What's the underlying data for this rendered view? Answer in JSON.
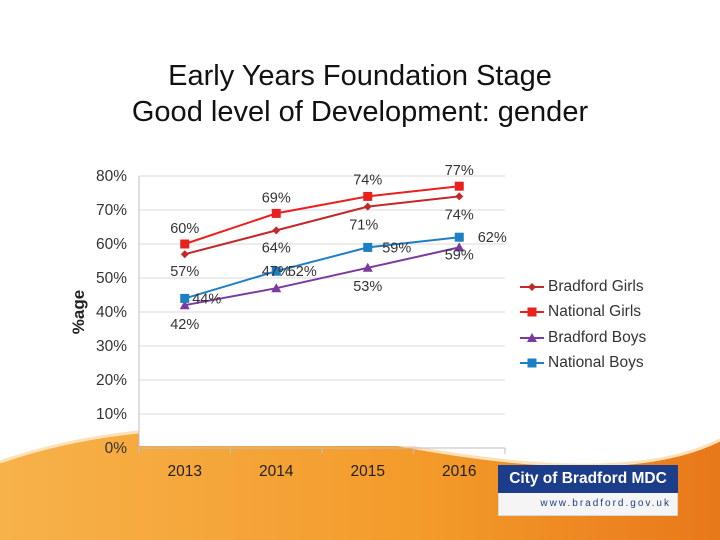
{
  "title_lines": [
    "Early Years Foundation Stage",
    "Good level of Development: gender"
  ],
  "chart_data": {
    "type": "line",
    "categories": [
      "2013",
      "2014",
      "2015",
      "2016"
    ],
    "ylabel": "%age",
    "ylim": [
      0,
      80
    ],
    "yticks": [
      0,
      10,
      20,
      30,
      40,
      50,
      60,
      70,
      80
    ],
    "ytick_labels": [
      "0%",
      "10%",
      "20%",
      "30%",
      "40%",
      "50%",
      "60%",
      "70%",
      "80%"
    ],
    "series": [
      {
        "name": "Bradford Girls",
        "color": "#c0282a",
        "marker": "diamond",
        "values": [
          57,
          64,
          71,
          74
        ],
        "labels": [
          "57%",
          "64%",
          "71%",
          "74%"
        ]
      },
      {
        "name": "National Girls",
        "color": "#e8201e",
        "marker": "square",
        "values": [
          60,
          69,
          74,
          77
        ],
        "labels": [
          "60%",
          "69%",
          "74%",
          "77%"
        ]
      },
      {
        "name": "Bradford Boys",
        "color": "#7a3aa0",
        "marker": "triangle",
        "values": [
          42,
          47,
          53,
          59
        ],
        "labels": [
          "42%",
          "47%",
          "53%",
          "59%"
        ]
      },
      {
        "name": "National Boys",
        "color": "#1f7fc4",
        "marker": "square",
        "values": [
          44,
          52,
          59,
          62
        ],
        "labels": [
          "44%",
          "52%",
          "59%",
          "62%"
        ]
      }
    ]
  },
  "branding": {
    "name": "City of Bradford MDC",
    "url": "www.bradford.gov.uk"
  }
}
